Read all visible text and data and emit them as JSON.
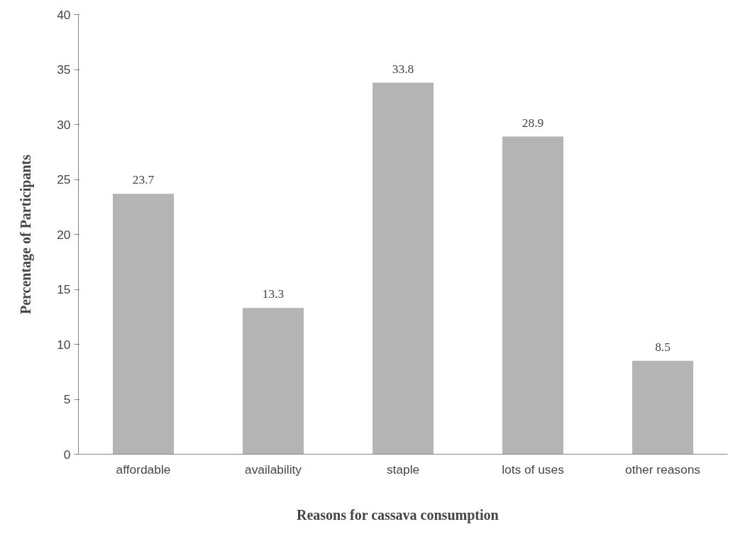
{
  "chart_data": {
    "type": "bar",
    "xlabel": "Reasons  for  cassava  consumption",
    "ylabel": "Percentage of Participants",
    "categories": [
      "affordable",
      "availability",
      "staple",
      "lots of uses",
      "other reasons"
    ],
    "values": [
      23.7,
      13.3,
      33.8,
      28.9,
      8.5
    ],
    "color": "#b4b4b4",
    "ylim": [
      0,
      40
    ],
    "yticks": [
      0,
      5,
      10,
      15,
      20,
      25,
      30,
      35,
      40
    ],
    "grid": false,
    "data_labels": true
  }
}
